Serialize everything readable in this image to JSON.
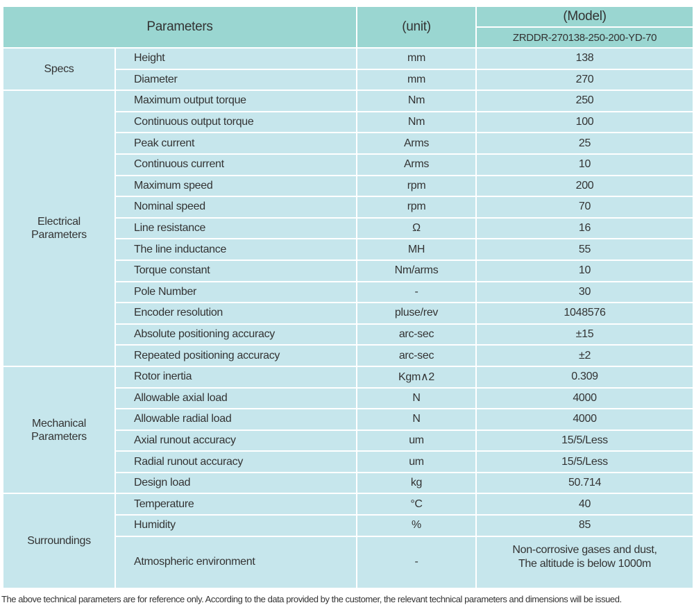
{
  "header": {
    "parameters": "Parameters",
    "unit": "(unit)",
    "model": "(Model)",
    "model_id": "ZRDDR-270138-250-200-YD-70"
  },
  "colors": {
    "header_bg": "#9ad6d1",
    "body_bg": "#c6e6ec",
    "border": "#ffffff"
  },
  "groups": [
    {
      "label": "Specs",
      "rows": [
        {
          "param": "Height",
          "unit": "mm",
          "value": "138"
        },
        {
          "param": "Diameter",
          "unit": "mm",
          "value": "270"
        }
      ]
    },
    {
      "label": "Electrical Parameters",
      "rows": [
        {
          "param": "Maximum output torque",
          "unit": "Nm",
          "value": "250"
        },
        {
          "param": "Continuous output torque",
          "unit": "Nm",
          "value": "100"
        },
        {
          "param": "Peak current",
          "unit": "Arms",
          "value": "25"
        },
        {
          "param": "Continuous current",
          "unit": "Arms",
          "value": "10"
        },
        {
          "param": "Maximum speed",
          "unit": "rpm",
          "value": "200"
        },
        {
          "param": "Nominal speed",
          "unit": "rpm",
          "value": "70"
        },
        {
          "param": "Line resistance",
          "unit": "Ω",
          "value": "16"
        },
        {
          "param": "The line inductance",
          "unit": "MH",
          "value": "55"
        },
        {
          "param": "Torque constant",
          "unit": "Nm/arms",
          "value": "10"
        },
        {
          "param": "Pole Number",
          "unit": "-",
          "value": "30"
        },
        {
          "param": "Encoder resolution",
          "unit": "pluse/rev",
          "value": "1048576"
        },
        {
          "param": "Absolute positioning accuracy",
          "unit": "arc-sec",
          "value": "±15"
        },
        {
          "param": "Repeated positioning accuracy",
          "unit": "arc-sec",
          "value": "±2"
        }
      ]
    },
    {
      "label": "Mechanical Parameters",
      "rows": [
        {
          "param": "Rotor inertia",
          "unit": "Kgm∧2",
          "value": "0.309"
        },
        {
          "param": "Allowable axial load",
          "unit": "N",
          "value": "4000"
        },
        {
          "param": "Allowable radial load",
          "unit": "N",
          "value": "4000"
        },
        {
          "param": "Axial runout accuracy",
          "unit": "um",
          "value": "15/5/Less"
        },
        {
          "param": "Radial runout accuracy",
          "unit": "um",
          "value": "15/5/Less"
        },
        {
          "param": "Design load",
          "unit": "kg",
          "value": "50.714"
        }
      ]
    },
    {
      "label": "Surroundings",
      "rows": [
        {
          "param": "Temperature",
          "unit": "°C",
          "value": "40"
        },
        {
          "param": "Humidity",
          "unit": "%",
          "value": "85"
        },
        {
          "param": "Atmospheric environment",
          "unit": "-",
          "value": "Non-corrosive gases and dust,",
          "value_line2": "The altitude is below 1000m"
        }
      ]
    }
  ],
  "footnote": "The above technical parameters are for reference only. According to the data provided by the customer, the relevant technical parameters and dimensions will be issued."
}
